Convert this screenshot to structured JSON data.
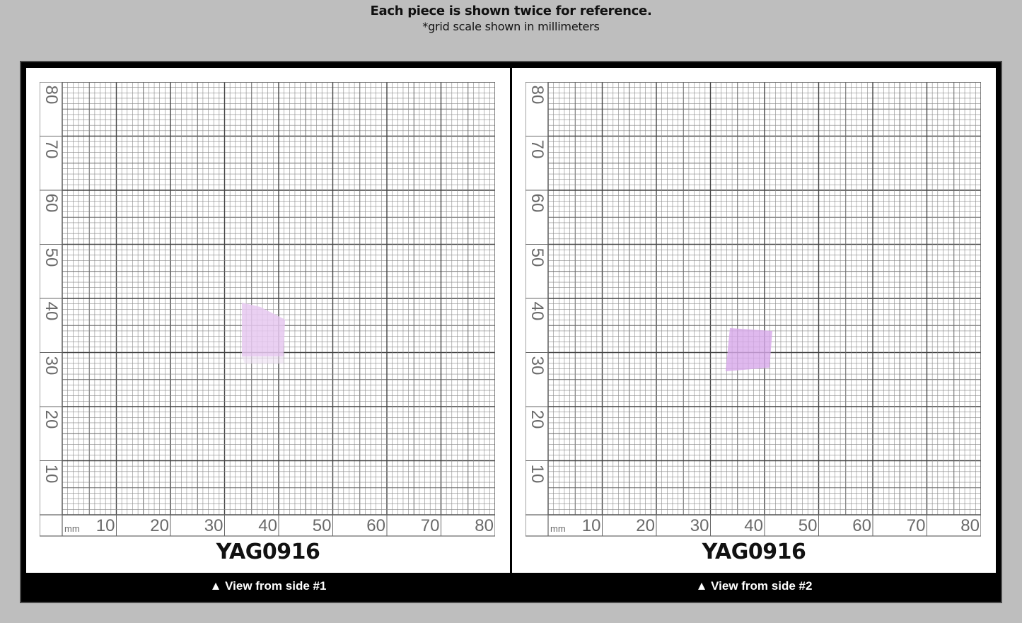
{
  "header": {
    "title": "Each piece is shown twice for reference.",
    "subtitle": "*grid scale shown in millimeters"
  },
  "grid": {
    "unit_label": "mm",
    "x_ticks": [
      "10",
      "20",
      "30",
      "40",
      "50",
      "60",
      "70",
      "80"
    ],
    "y_ticks": [
      "80",
      "70",
      "60",
      "50",
      "40",
      "30",
      "20",
      "10"
    ],
    "line_color": "#555555",
    "label_color": "#6a6a6a"
  },
  "panels": [
    {
      "piece_id": "YAG0916",
      "caption_icon": "up-triangle-icon",
      "caption": "▲ View from side #1",
      "specimen_color": "#e6c8f0"
    },
    {
      "piece_id": "YAG0916",
      "caption_icon": "up-triangle-icon",
      "caption": "▲ View from side #2",
      "specimen_color": "#d7a7ea"
    }
  ],
  "colors": {
    "background": "#bebebe",
    "frame": "#000000",
    "panel": "#ffffff"
  }
}
